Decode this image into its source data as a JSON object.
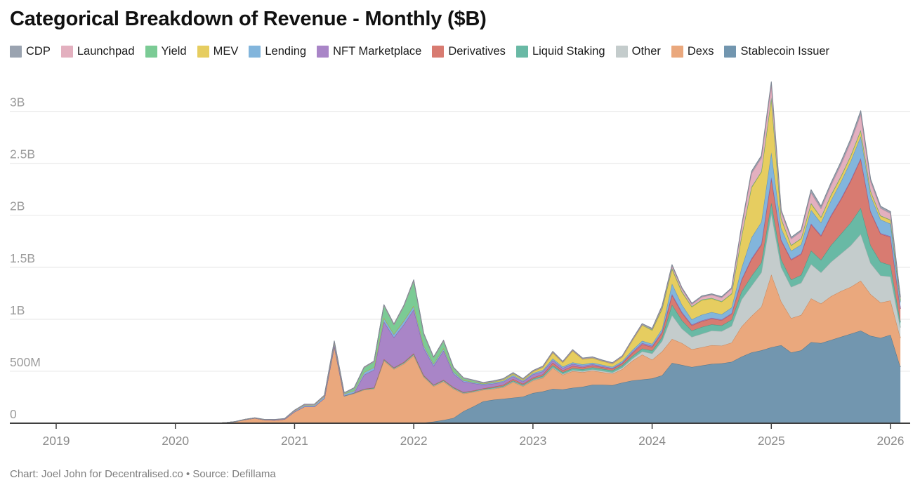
{
  "page": {
    "title": "Categorical Breakdown of Revenue - Monthly ($B)",
    "footer": "Chart: Joel John for Decentralised.co • Source: Defillama"
  },
  "chart_data": {
    "type": "area",
    "stacked": true,
    "title": "Categorical Breakdown of Revenue - Monthly ($B)",
    "value_unit": "millions_usd",
    "legend_position": "top",
    "grid": "horizontal",
    "axis_color": "#3f3f3f",
    "grid_color": "#e9e9e9",
    "x_axis": {
      "tick_years": [
        2019,
        2020,
        2021,
        2022,
        2023,
        2024,
        2025,
        2026
      ],
      "tick_labels": [
        "2019",
        "2020",
        "2021",
        "2022",
        "2023",
        "2024",
        "2025",
        "2026"
      ]
    },
    "y_axis": {
      "ticks": [
        {
          "v": 0,
          "label": "0"
        },
        {
          "v": 500,
          "label": "500M"
        },
        {
          "v": 1000,
          "label": "1B"
        },
        {
          "v": 1500,
          "label": "1.5B"
        },
        {
          "v": 2000,
          "label": "2B"
        },
        {
          "v": 2500,
          "label": "2.5B"
        },
        {
          "v": 3000,
          "label": "3B"
        }
      ],
      "range": [
        0,
        3400
      ]
    },
    "months": [
      "2019-01",
      "2020-05",
      "2020-06",
      "2020-07",
      "2020-08",
      "2020-09",
      "2020-10",
      "2020-11",
      "2020-12",
      "2021-01",
      "2021-02",
      "2021-03",
      "2021-04",
      "2021-05",
      "2021-06",
      "2021-07",
      "2021-08",
      "2021-09",
      "2021-10",
      "2021-11",
      "2021-12",
      "2022-01",
      "2022-02",
      "2022-03",
      "2022-04",
      "2022-05",
      "2022-06",
      "2022-07",
      "2022-08",
      "2022-09",
      "2022-10",
      "2022-11",
      "2022-12",
      "2023-01",
      "2023-02",
      "2023-03",
      "2023-04",
      "2023-05",
      "2023-06",
      "2023-07",
      "2023-08",
      "2023-09",
      "2023-10",
      "2023-11",
      "2023-12",
      "2024-01",
      "2024-02",
      "2024-03",
      "2024-04",
      "2024-05",
      "2024-06",
      "2024-07",
      "2024-08",
      "2024-09",
      "2024-10",
      "2024-11",
      "2024-12",
      "2025-01",
      "2025-02",
      "2025-03",
      "2025-04",
      "2025-05",
      "2025-06",
      "2025-07",
      "2025-08",
      "2025-09",
      "2025-10",
      "2025-11",
      "2025-12",
      "2026-01",
      "2026-02"
    ],
    "stack_order_bottom_to_top": [
      "stablecoin_issuer",
      "dexs",
      "other",
      "liquid_staking",
      "derivatives",
      "nft_marketplace",
      "lending",
      "mev",
      "yield",
      "launchpad",
      "cdp"
    ],
    "series": [
      {
        "key": "cdp",
        "label": "CDP",
        "color": "#9aa3b0",
        "stroke": "#7d8794",
        "values": [
          0,
          0,
          0,
          0,
          0,
          1,
          1,
          2,
          2,
          3,
          4,
          4,
          5,
          6,
          4,
          4,
          5,
          5,
          6,
          6,
          7,
          8,
          6,
          5,
          6,
          5,
          4,
          4,
          4,
          4,
          4,
          5,
          4,
          5,
          6,
          7,
          6,
          7,
          7,
          7,
          6,
          6,
          7,
          8,
          9,
          8,
          10,
          15,
          12,
          10,
          10,
          10,
          10,
          10,
          14,
          20,
          22,
          30,
          18,
          15,
          15,
          30,
          25,
          25,
          28,
          30,
          35,
          25,
          20,
          18,
          8
        ]
      },
      {
        "key": "launchpad",
        "label": "Launchpad",
        "color": "#e3b0bf",
        "stroke": "#c98ba0",
        "values": [
          0,
          0,
          0,
          0,
          0,
          0,
          0,
          0,
          0,
          0,
          0,
          0,
          0,
          0,
          0,
          0,
          0,
          0,
          0,
          0,
          0,
          0,
          0,
          0,
          0,
          0,
          0,
          0,
          0,
          0,
          0,
          0,
          0,
          0,
          0,
          0,
          0,
          0,
          0,
          0,
          0,
          0,
          0,
          0,
          0,
          5,
          15,
          20,
          25,
          20,
          25,
          30,
          35,
          45,
          85,
          130,
          130,
          120,
          60,
          60,
          65,
          100,
          80,
          90,
          110,
          130,
          150,
          90,
          70,
          60,
          25
        ]
      },
      {
        "key": "yield",
        "label": "Yield",
        "color": "#7bcb95",
        "stroke": "#57a873",
        "values": [
          0,
          0,
          0,
          0,
          0,
          0,
          0,
          0,
          0,
          3,
          4,
          4,
          5,
          8,
          6,
          25,
          45,
          55,
          120,
          90,
          140,
          240,
          110,
          60,
          70,
          35,
          20,
          15,
          8,
          8,
          8,
          8,
          6,
          6,
          6,
          7,
          6,
          6,
          5,
          5,
          5,
          4,
          5,
          6,
          7,
          6,
          7,
          8,
          7,
          6,
          6,
          6,
          5,
          5,
          6,
          6,
          6,
          8,
          6,
          5,
          5,
          6,
          5,
          5,
          5,
          5,
          5,
          5,
          4,
          4,
          2
        ]
      },
      {
        "key": "mev",
        "label": "MEV",
        "color": "#e6cd60",
        "stroke": "#c4ab3c",
        "values": [
          0,
          0,
          0,
          0,
          0,
          0,
          0,
          0,
          0,
          0,
          0,
          0,
          0,
          0,
          0,
          0,
          0,
          0,
          3,
          3,
          3,
          4,
          3,
          3,
          3,
          3,
          3,
          3,
          3,
          5,
          10,
          12,
          10,
          15,
          25,
          55,
          40,
          110,
          50,
          45,
          35,
          30,
          40,
          90,
          150,
          130,
          190,
          140,
          120,
          120,
          140,
          130,
          120,
          130,
          300,
          480,
          480,
          520,
          90,
          50,
          55,
          60,
          50,
          50,
          50,
          50,
          55,
          40,
          35,
          35,
          15
        ]
      },
      {
        "key": "lending",
        "label": "Lending",
        "color": "#82b5dc",
        "stroke": "#5f93bd",
        "values": [
          0,
          0,
          0,
          0,
          2,
          3,
          3,
          4,
          5,
          10,
          15,
          16,
          20,
          30,
          18,
          20,
          25,
          25,
          35,
          30,
          35,
          35,
          25,
          20,
          22,
          18,
          12,
          10,
          8,
          10,
          10,
          12,
          10,
          12,
          14,
          16,
          14,
          15,
          14,
          14,
          13,
          12,
          14,
          18,
          22,
          20,
          25,
          100,
          70,
          50,
          55,
          55,
          50,
          55,
          110,
          200,
          210,
          240,
          110,
          80,
          85,
          130,
          120,
          140,
          160,
          180,
          210,
          150,
          130,
          120,
          60
        ]
      },
      {
        "key": "nft_marketplace",
        "label": "NFT Marketplace",
        "color": "#a985c7",
        "stroke": "#8a64a8",
        "values": [
          0,
          0,
          0,
          0,
          0,
          0,
          0,
          0,
          0,
          0,
          0,
          0,
          0,
          0,
          0,
          0,
          135,
          170,
          360,
          290,
          360,
          420,
          260,
          180,
          280,
          130,
          100,
          70,
          35,
          30,
          28,
          25,
          20,
          30,
          28,
          25,
          22,
          20,
          15,
          12,
          10,
          8,
          8,
          10,
          12,
          10,
          12,
          12,
          10,
          8,
          8,
          8,
          7,
          7,
          8,
          10,
          10,
          15,
          10,
          8,
          8,
          10,
          8,
          10,
          10,
          10,
          10,
          8,
          8,
          8,
          4
        ]
      },
      {
        "key": "derivatives",
        "label": "Derivatives",
        "color": "#d87b71",
        "stroke": "#b85a50",
        "values": [
          0,
          0,
          0,
          0,
          0,
          0,
          0,
          0,
          0,
          0,
          0,
          0,
          0,
          5,
          3,
          3,
          3,
          4,
          5,
          5,
          6,
          8,
          6,
          5,
          6,
          6,
          5,
          5,
          5,
          8,
          10,
          15,
          10,
          12,
          15,
          25,
          18,
          22,
          18,
          18,
          16,
          15,
          18,
          30,
          40,
          35,
          45,
          90,
          70,
          50,
          55,
          55,
          50,
          55,
          110,
          160,
          170,
          230,
          180,
          190,
          200,
          250,
          230,
          280,
          330,
          400,
          470,
          320,
          270,
          270,
          130
        ]
      },
      {
        "key": "liquid_staking",
        "label": "Liquid Staking",
        "color": "#69b9a5",
        "stroke": "#4a9a86",
        "values": [
          0,
          0,
          0,
          0,
          0,
          0,
          0,
          0,
          0,
          0,
          0,
          0,
          0,
          2,
          2,
          3,
          4,
          5,
          6,
          5,
          6,
          7,
          6,
          5,
          6,
          6,
          5,
          5,
          5,
          8,
          9,
          10,
          10,
          12,
          14,
          18,
          16,
          18,
          18,
          20,
          20,
          20,
          22,
          25,
          28,
          28,
          35,
          100,
          80,
          60,
          65,
          60,
          55,
          60,
          75,
          95,
          95,
          100,
          75,
          70,
          75,
          130,
          120,
          160,
          190,
          220,
          250,
          170,
          130,
          110,
          50
        ]
      },
      {
        "key": "other",
        "label": "Other",
        "color": "#c4cccc",
        "stroke": "#a3adad",
        "values": [
          0,
          0,
          0,
          0,
          0,
          0,
          0,
          0,
          0,
          0,
          0,
          0,
          0,
          0,
          0,
          2,
          3,
          4,
          5,
          5,
          6,
          7,
          5,
          5,
          5,
          5,
          4,
          4,
          4,
          4,
          4,
          5,
          4,
          5,
          6,
          8,
          8,
          10,
          10,
          12,
          12,
          12,
          15,
          20,
          30,
          60,
          100,
          230,
          140,
          120,
          130,
          140,
          140,
          160,
          260,
          290,
          330,
          590,
          330,
          300,
          310,
          330,
          300,
          330,
          360,
          400,
          450,
          300,
          260,
          230,
          100
        ]
      },
      {
        "key": "dexs",
        "label": "Dexs",
        "color": "#eaa87d",
        "stroke": "#cc865a",
        "values": [
          0,
          0,
          5,
          15,
          35,
          48,
          32,
          30,
          38,
          110,
          160,
          160,
          240,
          740,
          260,
          285,
          320,
          330,
          600,
          520,
          570,
          650,
          440,
          340,
          370,
          280,
          170,
          140,
          110,
          105,
          110,
          150,
          100,
          120,
          130,
          200,
          140,
          160,
          140,
          135,
          120,
          110,
          130,
          190,
          240,
          180,
          230,
          230,
          210,
          170,
          175,
          180,
          170,
          185,
          290,
          350,
          420,
          700,
          420,
          330,
          340,
          420,
          380,
          420,
          440,
          450,
          480,
          400,
          340,
          330,
          280
        ]
      },
      {
        "key": "stablecoin_issuer",
        "label": "Stablecoin Issuer",
        "color": "#7296af",
        "stroke": "#54788f",
        "values": [
          0,
          0,
          0,
          0,
          0,
          0,
          0,
          0,
          0,
          0,
          0,
          0,
          0,
          0,
          0,
          0,
          0,
          0,
          0,
          0,
          0,
          0,
          5,
          15,
          30,
          50,
          115,
          160,
          210,
          225,
          235,
          245,
          255,
          290,
          305,
          330,
          325,
          340,
          350,
          370,
          370,
          365,
          390,
          410,
          420,
          430,
          460,
          580,
          560,
          540,
          555,
          570,
          575,
          590,
          640,
          680,
          700,
          730,
          750,
          680,
          700,
          780,
          770,
          800,
          830,
          860,
          890,
          840,
          820,
          850,
          540
        ]
      }
    ]
  }
}
